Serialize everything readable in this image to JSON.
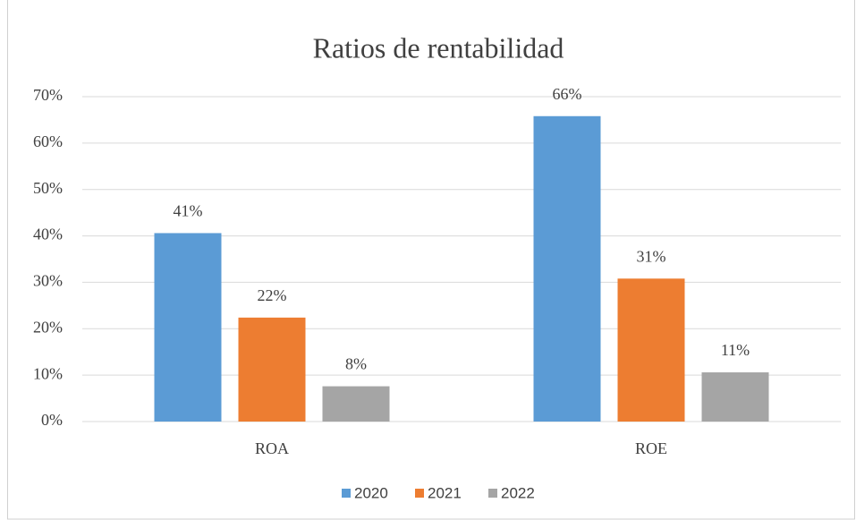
{
  "chart_data": {
    "type": "bar",
    "title": "Ratios de rentabilidad",
    "categories": [
      "ROA",
      "ROE"
    ],
    "series": [
      {
        "name": "2020",
        "color": "#5b9bd5",
        "values": [
          40.6,
          65.8
        ],
        "value_labels": [
          "41%",
          "66%"
        ]
      },
      {
        "name": "2021",
        "color": "#ed7d31",
        "values": [
          22.4,
          30.8
        ],
        "value_labels": [
          "22%",
          "31%"
        ]
      },
      {
        "name": "2022",
        "color": "#a5a5a5",
        "values": [
          7.6,
          10.6
        ],
        "value_labels": [
          "8%",
          "11%"
        ]
      }
    ],
    "ylim": [
      0,
      70
    ],
    "yticks": [
      {
        "value": 0,
        "label": "0%"
      },
      {
        "value": 10,
        "label": "10%"
      },
      {
        "value": 20,
        "label": "20%"
      },
      {
        "value": 30,
        "label": "30%"
      },
      {
        "value": 40,
        "label": "40%"
      },
      {
        "value": 50,
        "label": "50%"
      },
      {
        "value": 60,
        "label": "60%"
      },
      {
        "value": 70,
        "label": "70%"
      }
    ],
    "grid": true,
    "legend": "bottom"
  }
}
